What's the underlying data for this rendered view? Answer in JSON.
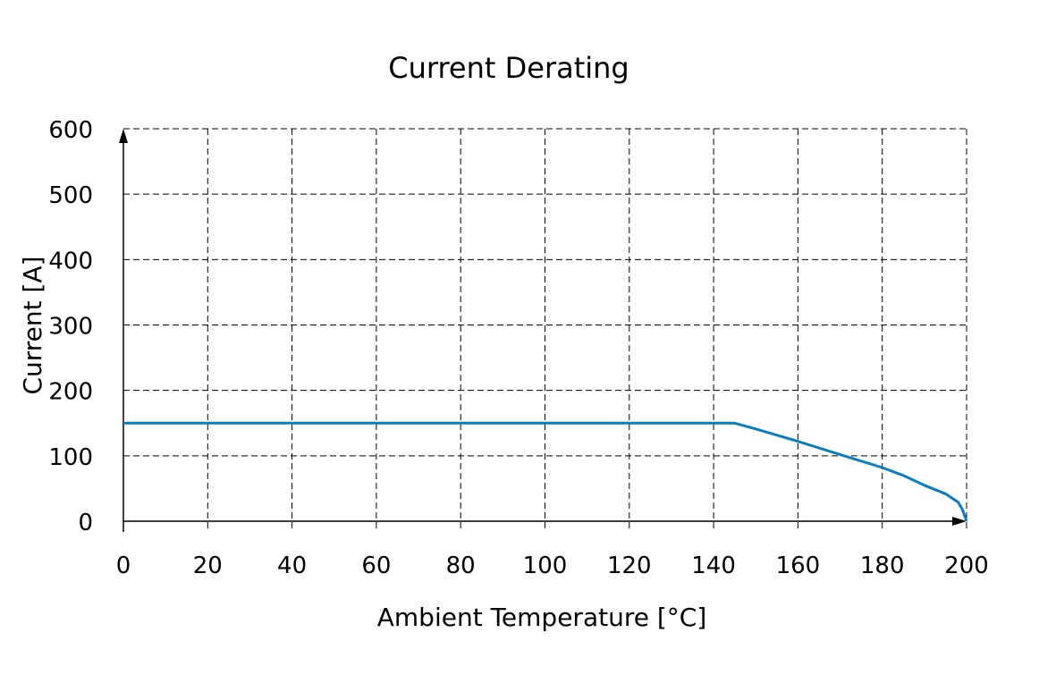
{
  "chart_data": {
    "type": "line",
    "title": "Current Derating",
    "xlabel": "Ambient Temperature [°C]",
    "ylabel": "Current [A]",
    "xlim": [
      0,
      200
    ],
    "ylim": [
      0,
      600
    ],
    "xticks": [
      0,
      20,
      40,
      60,
      80,
      100,
      120,
      140,
      160,
      180,
      200
    ],
    "yticks": [
      0,
      100,
      200,
      300,
      400,
      500,
      600
    ],
    "grid": true,
    "series": [
      {
        "name": "Current",
        "color": "#0a7dc0",
        "x": [
          0,
          145,
          150,
          160,
          170,
          180,
          185,
          190,
          195,
          198,
          199,
          200
        ],
        "y": [
          150,
          150,
          141,
          122,
          102,
          82,
          70,
          55,
          42,
          29,
          18,
          0
        ]
      }
    ]
  }
}
